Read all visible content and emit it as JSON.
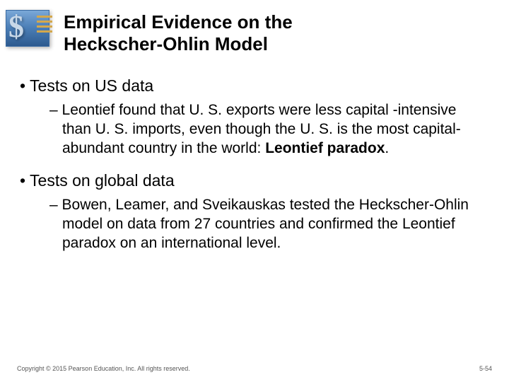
{
  "header": {
    "title_line1": "Empirical Evidence on the",
    "title_line2": "Heckscher-Ohlin Model"
  },
  "content": {
    "bullet1": {
      "main": "Tests on US data",
      "sub_pre": "Leontief found that U. S. exports were less capital -intensive than U. S. imports, even though the U. S. is the most capital-abundant country in the world: ",
      "sub_bold": "Leontief paradox",
      "sub_post": "."
    },
    "bullet2": {
      "main": "Tests on global data",
      "sub": "Bowen, Leamer, and Sveikauskas tested the Heckscher-Ohlin model on data from 27 countries and confirmed the Leontief paradox on an international level."
    }
  },
  "footer": {
    "copyright": "Copyright © 2015 Pearson Education, Inc. All rights reserved.",
    "page": "5-54"
  },
  "style": {
    "background_color": "#ffffff",
    "title_color": "#000000",
    "title_fontsize": 26,
    "body_fontsize": 21,
    "logo_gradient_top": "#7aa8d8",
    "logo_gradient_bottom": "#2d5a8f",
    "logo_accent": "#d4a84c",
    "footer_color": "#555555",
    "footer_fontsize": 9
  }
}
